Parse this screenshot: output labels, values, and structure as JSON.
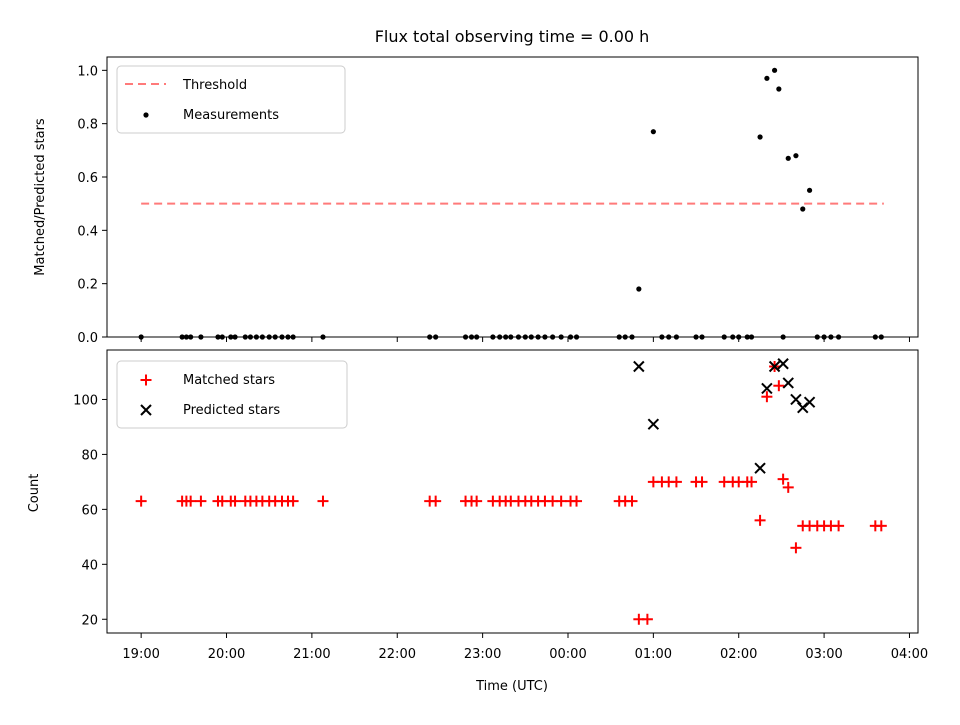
{
  "chart_data": {
    "type": "scatter",
    "title": "Flux total observing time = 0.00 h",
    "xlabel": "Time (UTC)",
    "x_tick_labels": [
      "19:00",
      "20:00",
      "21:00",
      "22:00",
      "23:00",
      "00:00",
      "01:00",
      "02:00",
      "03:00",
      "04:00"
    ],
    "x_range_hours": [
      18.6,
      28.1
    ],
    "colors": {
      "threshold": "#ff7a7a",
      "measurements": "#000000",
      "matched": "#ff0000",
      "predicted": "#000000"
    },
    "panels": [
      {
        "ylabel": "Matched/Predicted stars",
        "ylim": [
          0,
          1.05
        ],
        "y_ticks": [
          "0.0",
          "0.2",
          "0.4",
          "0.6",
          "0.8",
          "1.0"
        ],
        "legend_position": "upper-left",
        "threshold": {
          "name": "Threshold",
          "y": 0.5,
          "x": [
            19.0,
            27.7
          ]
        },
        "measurements": {
          "name": "Measurements",
          "x": [
            19.0,
            19.48,
            19.53,
            19.58,
            19.7,
            19.9,
            19.95,
            20.05,
            20.1,
            20.22,
            20.28,
            20.35,
            20.42,
            20.5,
            20.57,
            20.65,
            20.72,
            20.78,
            21.13,
            22.38,
            22.45,
            22.8,
            22.87,
            22.93,
            23.12,
            23.2,
            23.27,
            23.33,
            23.42,
            23.5,
            23.57,
            23.65,
            23.73,
            23.82,
            23.92,
            24.03,
            24.1,
            24.6,
            24.67,
            24.75,
            24.83,
            25.0,
            25.1,
            25.18,
            25.27,
            25.5,
            25.57,
            25.83,
            25.93,
            26.0,
            26.1,
            26.15,
            26.25,
            26.33,
            26.42,
            26.47,
            26.52,
            26.58,
            26.67,
            26.75,
            26.83,
            26.92,
            27.0,
            27.08,
            27.17,
            27.6,
            27.67
          ],
          "y": [
            0,
            0,
            0,
            0,
            0,
            0,
            0,
            0,
            0,
            0,
            0,
            0,
            0,
            0,
            0,
            0,
            0,
            0,
            0,
            0,
            0,
            0,
            0,
            0,
            0,
            0,
            0,
            0,
            0,
            0,
            0,
            0,
            0,
            0,
            0,
            0,
            0,
            0,
            0,
            0,
            0.18,
            0.77,
            0,
            0,
            0,
            0,
            0,
            0,
            0,
            0,
            0,
            0,
            0.75,
            0.97,
            1.0,
            0.93,
            0,
            0.67,
            0.68,
            0.48,
            0.55,
            0,
            0,
            0,
            0,
            0,
            0
          ]
        }
      },
      {
        "ylabel": "Count",
        "ylim": [
          15,
          118
        ],
        "y_ticks": [
          "20",
          "40",
          "60",
          "80",
          "100"
        ],
        "legend_position": "upper-left",
        "matched": {
          "name": "Matched stars",
          "x": [
            19.0,
            19.48,
            19.53,
            19.58,
            19.7,
            19.9,
            19.95,
            20.05,
            20.1,
            20.22,
            20.28,
            20.35,
            20.42,
            20.5,
            20.57,
            20.65,
            20.72,
            20.78,
            21.13,
            22.38,
            22.45,
            22.8,
            22.87,
            22.93,
            23.12,
            23.2,
            23.27,
            23.33,
            23.42,
            23.5,
            23.57,
            23.65,
            23.73,
            23.82,
            23.92,
            24.03,
            24.1,
            24.6,
            24.67,
            24.75,
            24.83,
            24.93,
            25.0,
            25.1,
            25.18,
            25.27,
            25.5,
            25.57,
            25.83,
            25.93,
            26.0,
            26.1,
            26.15,
            26.25,
            26.33,
            26.42,
            26.47,
            26.52,
            26.58,
            26.67,
            26.75,
            26.83,
            26.92,
            27.0,
            27.08,
            27.17,
            27.6,
            27.67
          ],
          "y": [
            63,
            63,
            63,
            63,
            63,
            63,
            63,
            63,
            63,
            63,
            63,
            63,
            63,
            63,
            63,
            63,
            63,
            63,
            63,
            63,
            63,
            63,
            63,
            63,
            63,
            63,
            63,
            63,
            63,
            63,
            63,
            63,
            63,
            63,
            63,
            63,
            63,
            63,
            63,
            63,
            20,
            20,
            70,
            70,
            70,
            70,
            70,
            70,
            70,
            70,
            70,
            70,
            70,
            56,
            101,
            112,
            105,
            71,
            68,
            46,
            54,
            54,
            54,
            54,
            54,
            54,
            54,
            54
          ]
        },
        "predicted": {
          "name": "Predicted stars",
          "x": [
            24.83,
            25.0,
            26.25,
            26.33,
            26.42,
            26.52,
            26.58,
            26.67,
            26.75,
            26.83
          ],
          "y": [
            112,
            91,
            75,
            104,
            112,
            113,
            106,
            100,
            97,
            99
          ]
        }
      }
    ]
  }
}
